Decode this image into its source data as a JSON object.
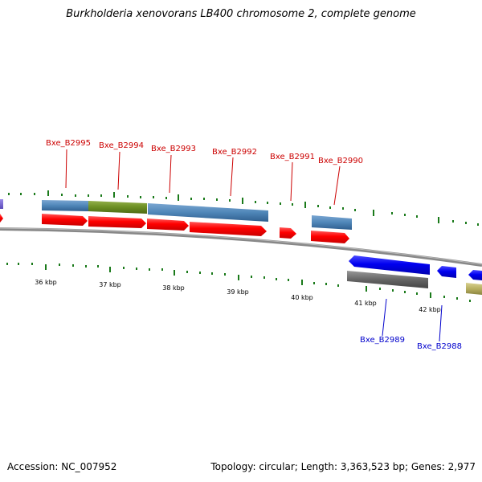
{
  "title": "Burkholderia xenovorans LB400 chromosome 2, complete genome",
  "footer": {
    "accession": "Accession: NC_007952",
    "summary": "Topology: circular; Length: 3,363,523 bp; Genes: 2,977"
  },
  "colors": {
    "forward_gene": "#ff0000",
    "reverse_gene": "#0000ee",
    "forward_label": "#cc0000",
    "reverse_label": "#0000cc",
    "tick": "#1a7a1a",
    "backbone": "#888888",
    "steelblue_feature": "#4f86b8",
    "olive_feature": "#6b8e23",
    "gray_feature": "#666666",
    "khaki_feature": "#b8b060"
  },
  "scale": {
    "unit": "kbp",
    "labels": [
      "36 kbp",
      "37 kbp",
      "38 kbp",
      "39 kbp",
      "40 kbp",
      "41 kbp",
      "42 kbp"
    ]
  },
  "genes": [
    {
      "id": "Bxe_B2995",
      "strand": "forward"
    },
    {
      "id": "Bxe_B2994",
      "strand": "forward"
    },
    {
      "id": "Bxe_B2993",
      "strand": "forward"
    },
    {
      "id": "Bxe_B2992",
      "strand": "forward"
    },
    {
      "id": "Bxe_B2991",
      "strand": "forward"
    },
    {
      "id": "Bxe_B2990",
      "strand": "forward"
    },
    {
      "id": "Bxe_B2989",
      "strand": "reverse"
    },
    {
      "id": "Bxe_B2988",
      "strand": "reverse"
    }
  ]
}
